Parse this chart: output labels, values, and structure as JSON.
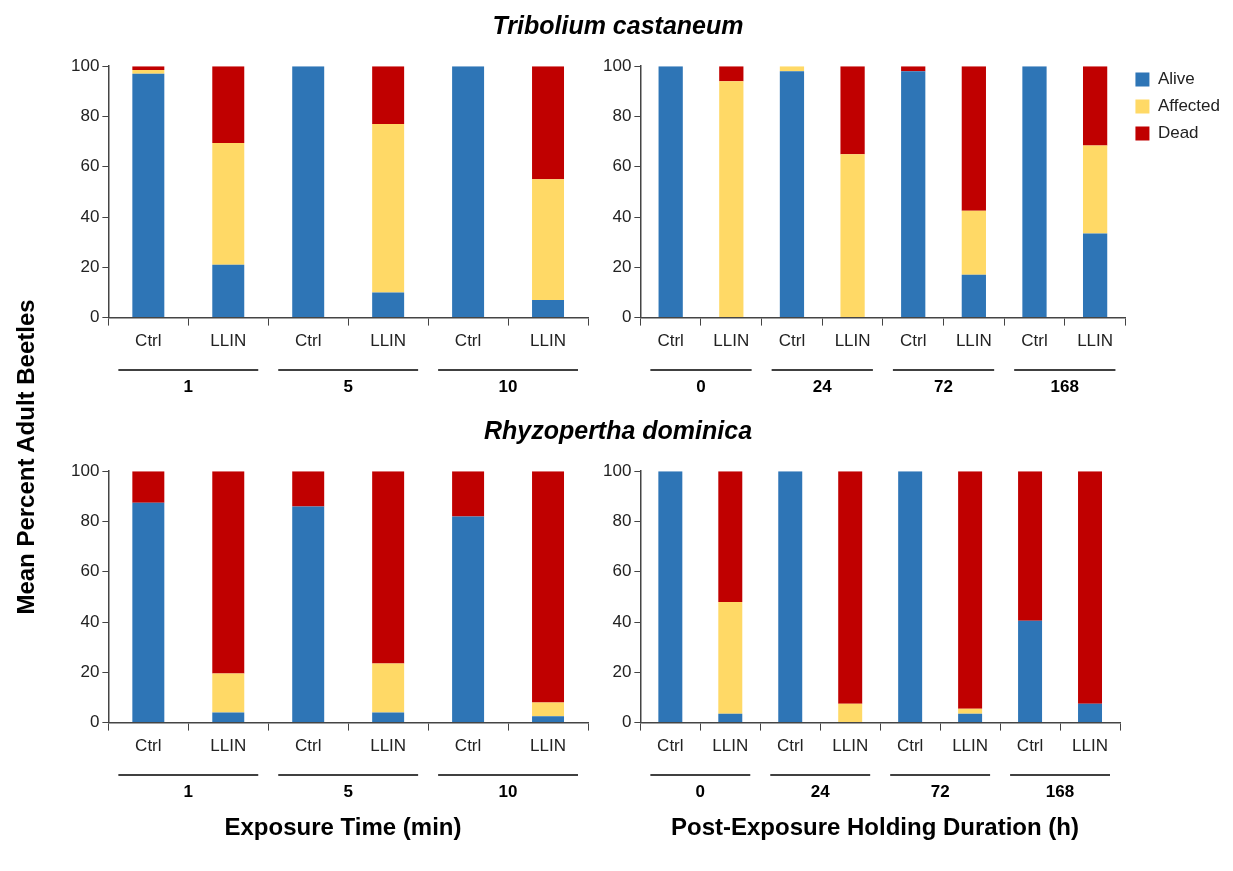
{
  "chart_data": [
    {
      "type": "bar",
      "stacked": true,
      "title": "Tribolium castaneum",
      "ylabel": "Mean Percent Adult Beetles",
      "categories": [
        "Ctrl",
        "LLIN",
        "Ctrl",
        "LLIN",
        "Ctrl",
        "LLIN"
      ],
      "annotations": [
        "1",
        "5",
        "10"
      ],
      "ylim": [
        0,
        100
      ],
      "yticks": [
        0,
        20,
        40,
        60,
        80,
        100
      ],
      "grid": false,
      "legend": false,
      "series": [
        {
          "color": "#2e75b6",
          "values": [
            97,
            21,
            100,
            10,
            100,
            7
          ]
        },
        {
          "color": "#ffd966",
          "values": [
            1.5,
            48.5,
            0,
            67,
            0,
            48
          ]
        },
        {
          "color": "#c00000",
          "values": [
            1.5,
            30.5,
            0,
            23,
            0,
            45
          ]
        }
      ]
    },
    {
      "type": "bar",
      "stacked": true,
      "categories": [
        "Ctrl",
        "LLIN",
        "Ctrl",
        "LLIN",
        "Ctrl",
        "LLIN",
        "Ctrl",
        "LLIN"
      ],
      "annotations": [
        "0",
        "24",
        "72",
        "168"
      ],
      "ylim": [
        0,
        100
      ],
      "yticks": [
        0,
        20,
        40,
        60,
        80,
        100
      ],
      "grid": false,
      "legend": "right",
      "series": [
        {
          "name": "Alive",
          "color": "#2e75b6",
          "values": [
            100,
            0,
            98,
            0,
            98,
            17,
            100,
            33.5
          ]
        },
        {
          "name": "Affected",
          "color": "#ffd966",
          "values": [
            0,
            94,
            2,
            65,
            0,
            25.5,
            0,
            35
          ]
        },
        {
          "name": "Dead",
          "color": "#c00000",
          "values": [
            0,
            6,
            0,
            35,
            2,
            57.5,
            0,
            31.5
          ]
        }
      ]
    },
    {
      "type": "bar",
      "stacked": true,
      "title": "Rhyzopertha dominica",
      "xlabel": "Exposure Time (min)",
      "categories": [
        "Ctrl",
        "LLIN",
        "Ctrl",
        "LLIN",
        "Ctrl",
        "LLIN"
      ],
      "annotations": [
        "1",
        "5",
        "10"
      ],
      "ylim": [
        0,
        100
      ],
      "yticks": [
        0,
        20,
        40,
        60,
        80,
        100
      ],
      "grid": false,
      "legend": false,
      "series": [
        {
          "color": "#2e75b6",
          "values": [
            87.5,
            4,
            86,
            4,
            82,
            2.5
          ]
        },
        {
          "color": "#ffd966",
          "values": [
            0,
            15.5,
            0,
            19.5,
            0,
            5.5
          ]
        },
        {
          "color": "#c00000",
          "values": [
            12.5,
            80.5,
            14,
            76.5,
            18,
            92
          ]
        }
      ]
    },
    {
      "type": "bar",
      "stacked": true,
      "xlabel": "Post-Exposure Holding Duration (h)",
      "categories": [
        "Ctrl",
        "LLIN",
        "Ctrl",
        "LLIN",
        "Ctrl",
        "LLIN",
        "Ctrl",
        "LLIN"
      ],
      "annotations": [
        "0",
        "24",
        "72",
        "168"
      ],
      "ylim": [
        0,
        100
      ],
      "yticks": [
        0,
        20,
        40,
        60,
        80,
        100
      ],
      "grid": false,
      "legend": false,
      "series": [
        {
          "color": "#2e75b6",
          "values": [
            100,
            3.5,
            100,
            0,
            100,
            3.5,
            40.5,
            7.5
          ]
        },
        {
          "color": "#ffd966",
          "values": [
            0,
            44.5,
            0,
            7.5,
            0,
            2,
            0,
            0
          ]
        },
        {
          "color": "#c00000",
          "values": [
            0,
            52,
            0,
            92.5,
            0,
            94.5,
            59.5,
            92.5
          ]
        }
      ]
    }
  ]
}
